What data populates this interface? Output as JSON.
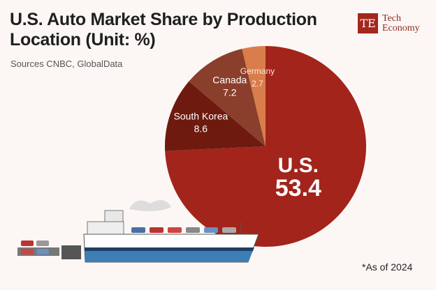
{
  "chart_data": {
    "type": "pie",
    "title": "U.S. Auto Market Share by Production Location (Unit: %)",
    "subtitle": "Sources CNBC, GlobalData",
    "note": "*As of 2024",
    "slices": [
      {
        "label": "U.S.",
        "value": 53.4,
        "color": "#a2241b"
      },
      {
        "label": "South Korea",
        "value": 8.6,
        "color": "#6e1a0f"
      },
      {
        "label": "Canada",
        "value": 7.2,
        "color": "#8a3e2c"
      },
      {
        "label": "Germany",
        "value": 2.7,
        "color": "#d87d4b"
      }
    ]
  },
  "logo": {
    "mark": "TE",
    "line1": "Tech",
    "line2": "Economy"
  }
}
